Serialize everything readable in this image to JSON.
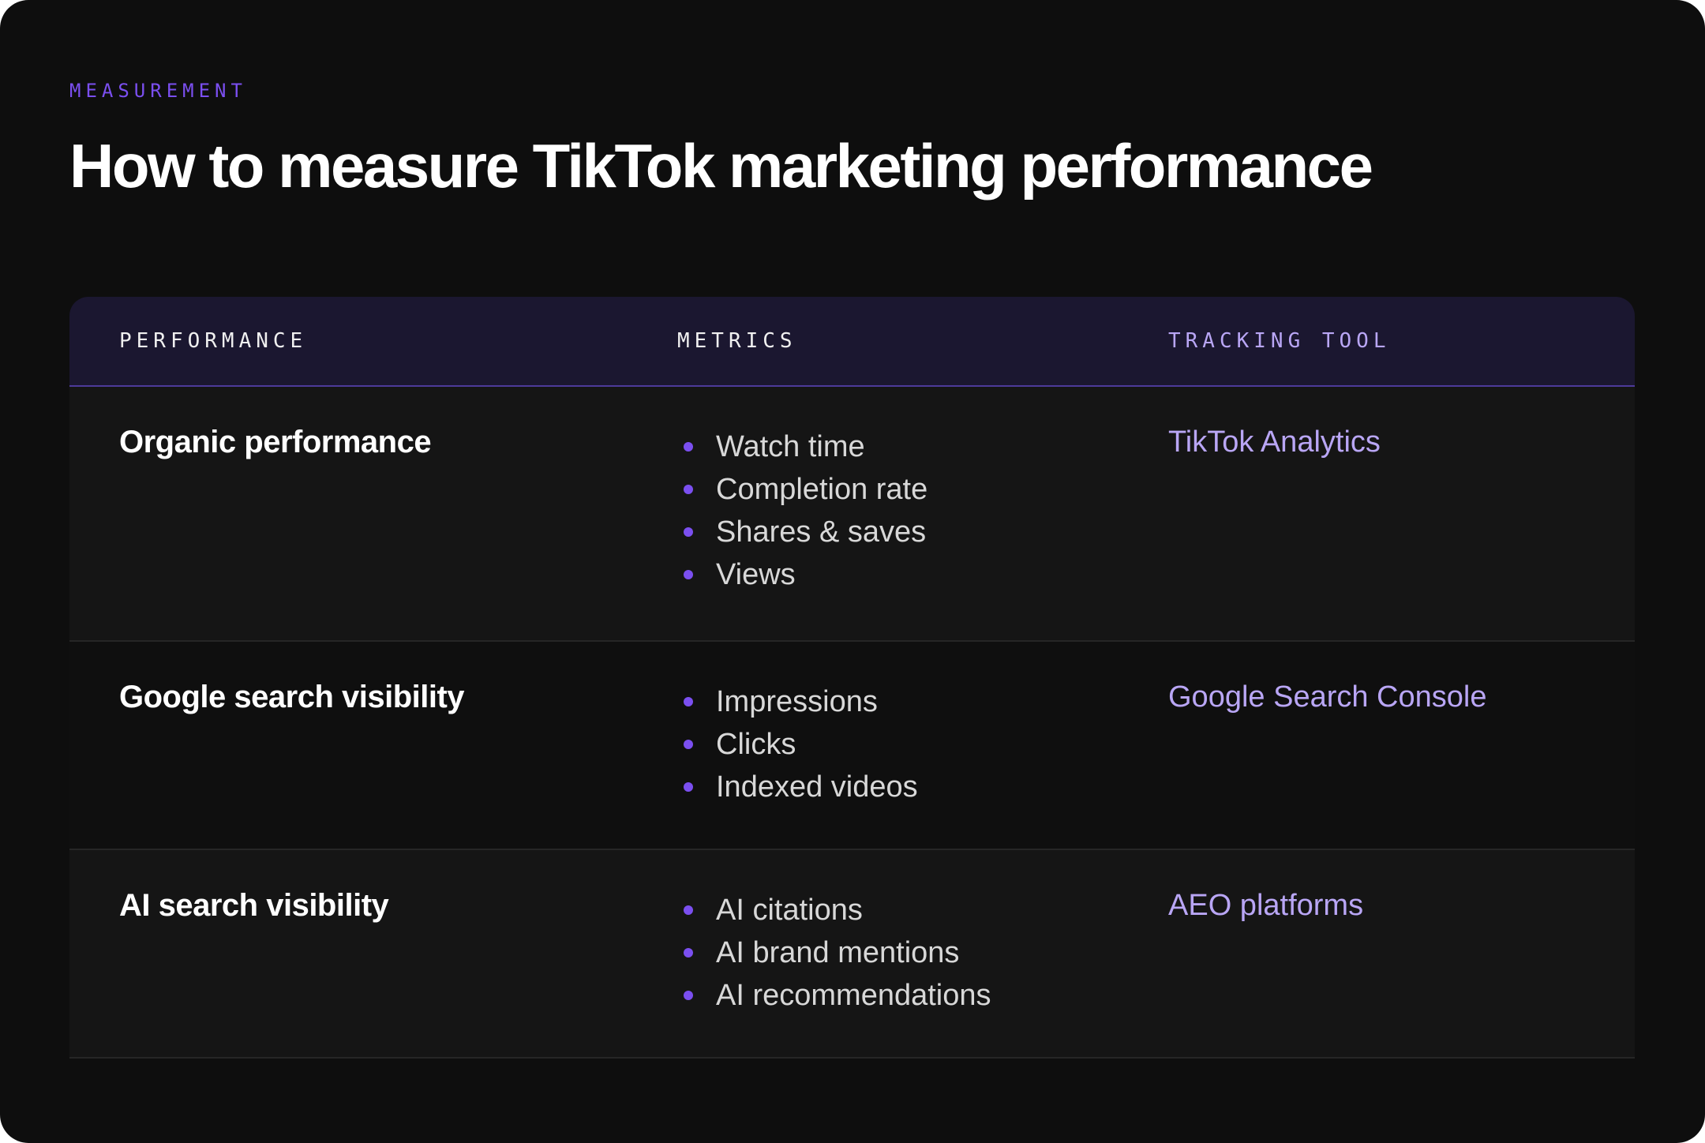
{
  "eyebrow": "MEASUREMENT",
  "title": "How to measure TikTok marketing performance",
  "table": {
    "headers": {
      "performance": "PERFORMANCE",
      "metrics": "METRICS",
      "tool": "TRACKING TOOL"
    },
    "rows": [
      {
        "performance": "Organic performance",
        "metrics": [
          "Watch time",
          "Completion rate",
          "Shares & saves",
          "Views"
        ],
        "tool": "TikTok Analytics"
      },
      {
        "performance": "Google search visibility",
        "metrics": [
          "Impressions",
          "Clicks",
          "Indexed videos"
        ],
        "tool": "Google Search Console"
      },
      {
        "performance": "AI search visibility",
        "metrics": [
          "AI citations",
          "AI brand mentions",
          "AI recommendations"
        ],
        "tool": "AEO platforms"
      }
    ]
  },
  "colors": {
    "background": "#0e0e0e",
    "accent": "#7b4ff0",
    "tool_text": "#b9a6f5",
    "header_bg": "#1b1730"
  }
}
